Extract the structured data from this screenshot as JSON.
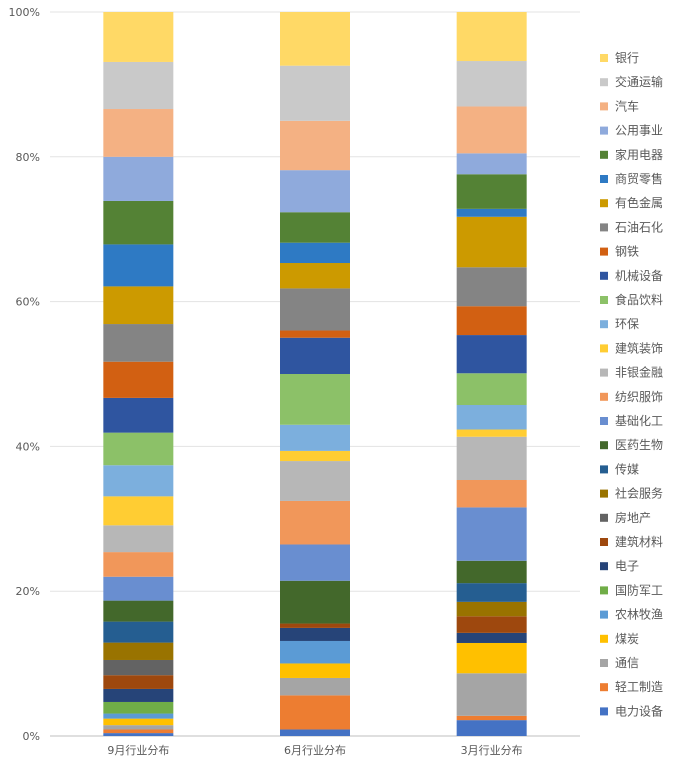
{
  "chart_data": {
    "type": "bar",
    "stacked": true,
    "percent_stacked": true,
    "categories": [
      "9月行业分布",
      "6月行业分布",
      "3月行业分布"
    ],
    "yticks": [
      "0%",
      "20%",
      "40%",
      "60%",
      "80%",
      "100%"
    ],
    "ylim": [
      0,
      100
    ],
    "grid": true,
    "legend_position": "right",
    "series": [
      {
        "name": "电力设备",
        "color": "#4472C4",
        "values": [
          0.4,
          0.9,
          2.2
        ]
      },
      {
        "name": "轻工制造",
        "color": "#ED7D31",
        "values": [
          0.5,
          4.7,
          0.6
        ]
      },
      {
        "name": "通信",
        "color": "#A5A5A5",
        "values": [
          0.6,
          2.4,
          5.9
        ]
      },
      {
        "name": "煤炭",
        "color": "#FFC000",
        "values": [
          0.9,
          2.0,
          4.2
        ]
      },
      {
        "name": "农林牧渔",
        "color": "#5B9BD5",
        "values": [
          0.7,
          3.1,
          0.0
        ]
      },
      {
        "name": "国防军工",
        "color": "#70AD47",
        "values": [
          1.6,
          0.0,
          0.0
        ]
      },
      {
        "name": "电子",
        "color": "#264478",
        "values": [
          1.8,
          1.8,
          1.4
        ]
      },
      {
        "name": "建筑材料",
        "color": "#9E480E",
        "values": [
          1.9,
          0.6,
          2.3
        ]
      },
      {
        "name": "房地产",
        "color": "#636363",
        "values": [
          2.1,
          0.0,
          0.0
        ]
      },
      {
        "name": "社会服务",
        "color": "#997300",
        "values": [
          2.4,
          0.0,
          2.0
        ]
      },
      {
        "name": "传媒",
        "color": "#255E91",
        "values": [
          2.9,
          0.0,
          2.6
        ]
      },
      {
        "name": "医药生物",
        "color": "#43682B",
        "values": [
          2.9,
          5.9,
          3.1
        ]
      },
      {
        "name": "基础化工",
        "color": "#698ED0",
        "values": [
          3.3,
          5.0,
          7.4
        ]
      },
      {
        "name": "纺织服饰",
        "color": "#F1975A",
        "values": [
          3.4,
          6.0,
          3.8
        ]
      },
      {
        "name": "非银金融",
        "color": "#B7B7B7",
        "values": [
          3.7,
          5.5,
          6.0
        ]
      },
      {
        "name": "建筑装饰",
        "color": "#FFCD33",
        "values": [
          4.0,
          1.4,
          1.0
        ]
      },
      {
        "name": "环保",
        "color": "#7CAFDD",
        "values": [
          4.3,
          3.6,
          3.4
        ]
      },
      {
        "name": "食品饮料",
        "color": "#8CC168",
        "values": [
          4.5,
          7.0,
          4.4
        ]
      },
      {
        "name": "机械设备",
        "color": "#2F55A0",
        "values": [
          4.8,
          5.0,
          5.3
        ]
      },
      {
        "name": "钢铁",
        "color": "#D26012",
        "values": [
          5.0,
          1.0,
          4.0
        ]
      },
      {
        "name": "石油石化",
        "color": "#848484",
        "values": [
          5.2,
          5.8,
          5.4
        ]
      },
      {
        "name": "有色金属",
        "color": "#CC9A00",
        "values": [
          5.2,
          3.5,
          7.0
        ]
      },
      {
        "name": "商贸零售",
        "color": "#2E7AC4",
        "values": [
          5.8,
          2.8,
          1.1
        ]
      },
      {
        "name": "家用电器",
        "color": "#548235",
        "values": [
          6.0,
          4.2,
          4.8
        ]
      },
      {
        "name": "公用事业",
        "color": "#8FAADC",
        "values": [
          6.1,
          5.8,
          2.9
        ]
      },
      {
        "name": "汽车",
        "color": "#F4B183",
        "values": [
          6.6,
          6.8,
          6.5
        ]
      },
      {
        "name": "交通运输",
        "color": "#C9C9C9",
        "values": [
          6.5,
          7.6,
          6.3
        ]
      },
      {
        "name": "银行",
        "color": "#FFD966",
        "values": [
          6.9,
          7.4,
          6.8
        ]
      }
    ]
  }
}
